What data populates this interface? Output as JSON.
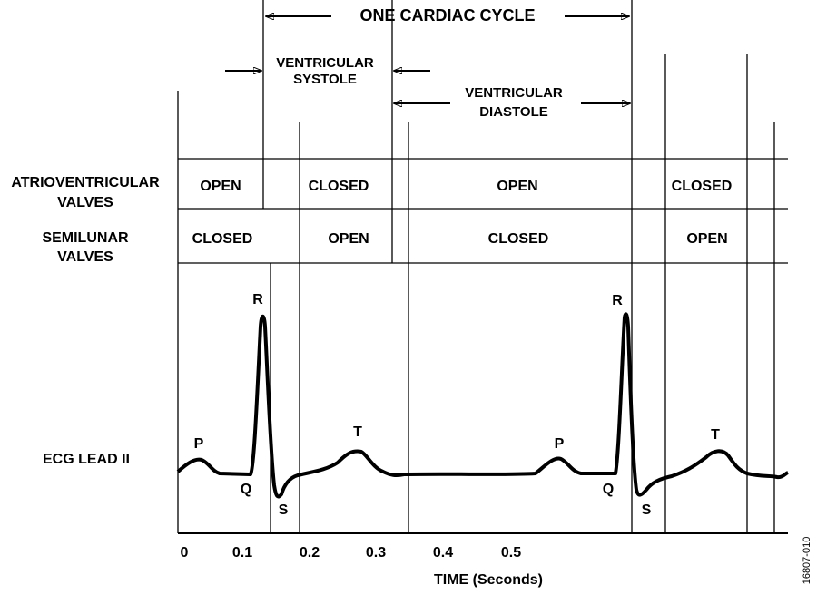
{
  "header": {
    "cycle_label": "ONE CARDIAC CYCLE",
    "systole": [
      "VENTRICULAR",
      "SYSTOLE"
    ],
    "diastole": [
      "VENTRICULAR",
      "DIASTOLE"
    ]
  },
  "rows": [
    {
      "label": [
        "ATRIOVENTRICULAR",
        "VALVES"
      ],
      "states": [
        "OPEN",
        "CLOSED",
        "OPEN",
        "CLOSED"
      ]
    },
    {
      "label": [
        "SEMILUNAR",
        "VALVES"
      ],
      "states": [
        "CLOSED",
        "OPEN",
        "CLOSED",
        "OPEN"
      ]
    }
  ],
  "ecg": {
    "label": "ECG LEAD II",
    "waves": [
      "P",
      "Q",
      "R",
      "S",
      "T",
      "P",
      "Q",
      "R",
      "S",
      "T"
    ]
  },
  "axis": {
    "ticks": [
      "0",
      "0.1",
      "0.2",
      "0.3",
      "0.4",
      "0.5"
    ],
    "title": "TIME (Seconds)"
  },
  "figure_id": "16807-010"
}
